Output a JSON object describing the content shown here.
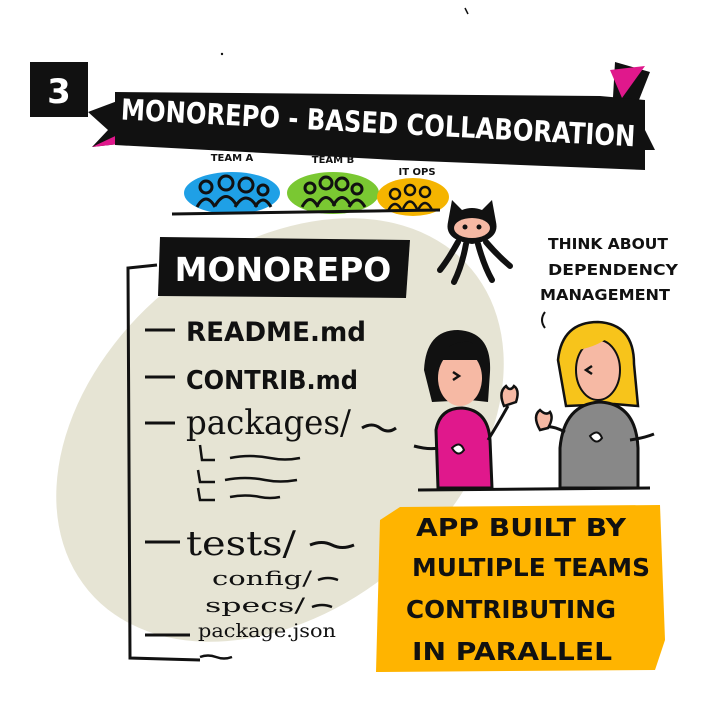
{
  "number": "3",
  "banner": {
    "title": "MONOREPO - BASED COLLABORATION"
  },
  "teams": [
    {
      "label": "TEAM A",
      "color": "#1fa0e6"
    },
    {
      "label": "TEAM B",
      "color": "#7ac832"
    },
    {
      "label": "IT OPS",
      "color": "#f5b400"
    }
  ],
  "repo": {
    "title": "MONOREPO",
    "items": [
      "README.md",
      "CONTRIB.md",
      "packages/",
      "tests/",
      "config/",
      "specs/",
      "package.json"
    ]
  },
  "thought": {
    "line1": "THINK ABOUT",
    "line2": "DEPENDENCY",
    "line3": "MANAGEMENT"
  },
  "callout": {
    "line1": "APP BUILT BY",
    "line2": "MULTIPLE TEAMS",
    "line3": "CONTRIBUTING",
    "line4": "IN PARALLEL",
    "color": "#ffb400"
  },
  "colors": {
    "ink": "#111111",
    "magenta": "#e0188c",
    "oval": "#e6e4d4",
    "skin": "#f6b9a4",
    "hair_blond": "#f7c41b",
    "grey_shirt": "#888888"
  }
}
